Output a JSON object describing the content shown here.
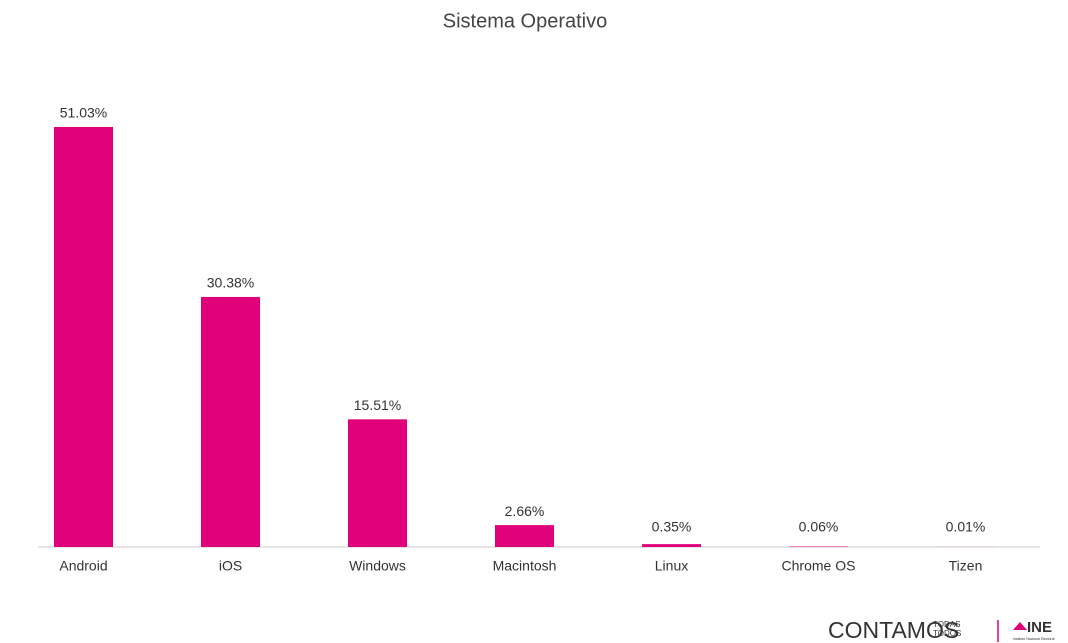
{
  "chart_data": {
    "type": "bar",
    "title": "Sistema Operativo",
    "categories": [
      "Android",
      "iOS",
      "Windows",
      "Macintosh",
      "Linux",
      "Chrome OS",
      "Tizen"
    ],
    "values": [
      51.03,
      30.38,
      15.51,
      2.66,
      0.35,
      0.06,
      0.01
    ],
    "value_labels": [
      "51.03%",
      "30.38%",
      "15.51%",
      "2.66%",
      "0.35%",
      "0.06%",
      "0.01%"
    ],
    "color": "#e0007a"
  },
  "footer": {
    "brand": "CONTAMOS",
    "top": "TODAS",
    "bottom": "TODOS",
    "logo": "INE",
    "logo_sub": "Instituto Nacional Electoral"
  }
}
